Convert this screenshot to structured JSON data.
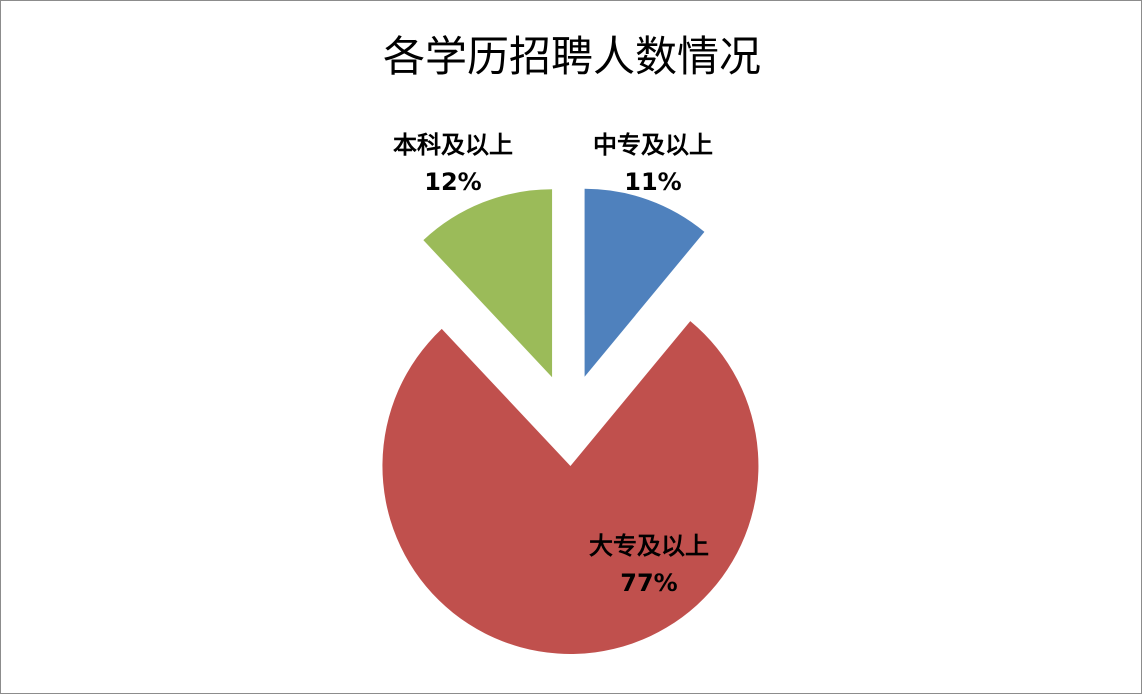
{
  "chart_data": {
    "type": "pie",
    "title": "各学历招聘人数情况",
    "exploded": true,
    "start_angle": "12 o'clock, clockwise",
    "slices": [
      {
        "label": "中专及以上",
        "value": 11,
        "value_label": "11%",
        "color": "#4F81BD"
      },
      {
        "label": "大专及以上",
        "value": 77,
        "value_label": "77%",
        "color": "#C0504D"
      },
      {
        "label": "本科及以上",
        "value": 12,
        "value_label": "12%",
        "color": "#9BBB59"
      }
    ]
  }
}
